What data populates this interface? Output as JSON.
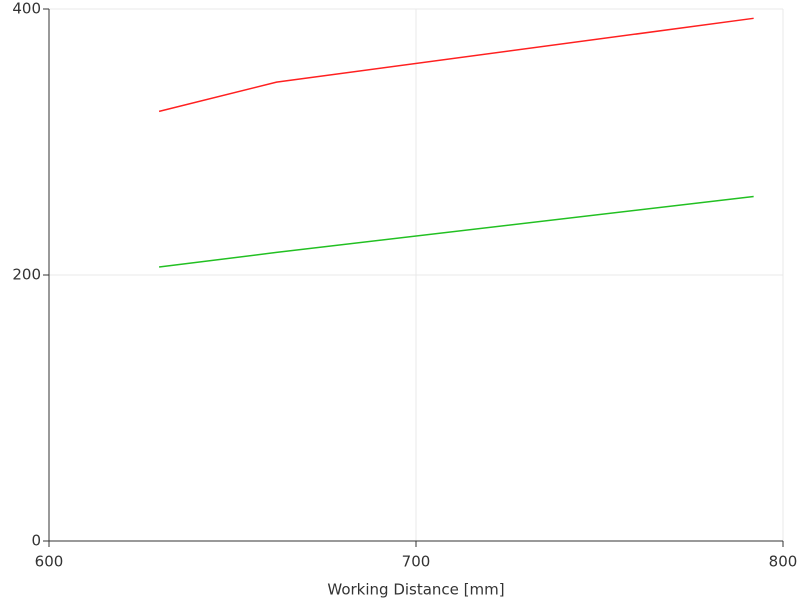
{
  "chart_data": {
    "type": "line",
    "x_label": "Working Distance [mm]",
    "x": [
      630,
      662,
      792
    ],
    "series": [
      {
        "color": "#ff2020",
        "values": [
          323,
          345,
          393
        ]
      },
      {
        "color": "#22c022",
        "values": [
          206,
          217,
          259
        ]
      }
    ],
    "xlim": [
      600,
      800
    ],
    "xticks": [
      600,
      700,
      800
    ],
    "ylim": [
      0,
      400
    ],
    "yticks": [
      0,
      200,
      400
    ],
    "grid": true
  }
}
